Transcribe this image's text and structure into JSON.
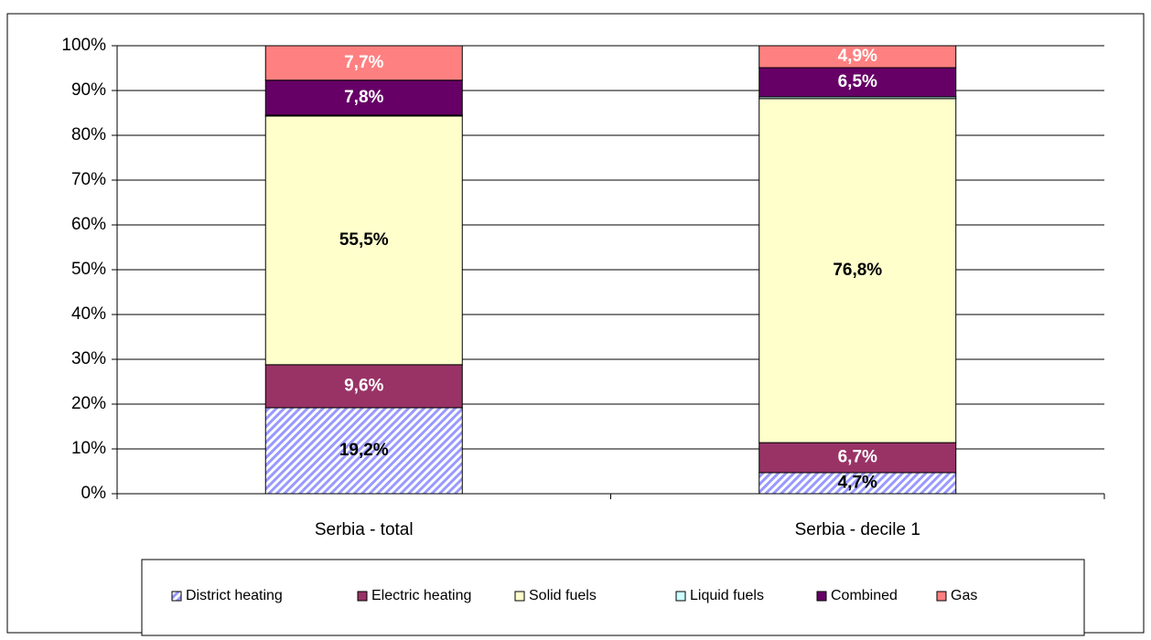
{
  "chart_data": {
    "type": "stacked_bar",
    "categories": [
      "Serbia - total",
      "Serbia - decile 1"
    ],
    "series": [
      {
        "name": "District heating",
        "color": "#9999ff",
        "pattern": "hatch",
        "label_color": "#000000",
        "values": [
          19.2,
          4.7
        ],
        "value_labels": [
          "19,2%",
          "4,7%"
        ]
      },
      {
        "name": "Electric heating",
        "color": "#993366",
        "label_color": "#ffffff",
        "values": [
          9.6,
          6.7
        ],
        "value_labels": [
          "9,6%",
          "6,7%"
        ]
      },
      {
        "name": "Solid fuels",
        "color": "#ffffcc",
        "label_color": "#000000",
        "values": [
          55.5,
          76.8
        ],
        "value_labels": [
          "55,5%",
          "76,8%"
        ]
      },
      {
        "name": "Liquid fuels",
        "color": "#ccffff",
        "label_color": "#000000",
        "values": [
          0.2,
          0.4
        ]
      },
      {
        "name": "Combined",
        "color": "#660066",
        "label_color": "#ffffff",
        "values": [
          7.8,
          6.5
        ],
        "value_labels": [
          "7,8%",
          "6,5%"
        ]
      },
      {
        "name": "Gas",
        "color": "#ff8080",
        "label_color": "#ffffff",
        "values": [
          7.7,
          4.9
        ],
        "value_labels": [
          "7,7%",
          "4,9%"
        ]
      }
    ],
    "ylim": [
      0,
      100
    ],
    "yticks": [
      {
        "value": 0,
        "label": "0%"
      },
      {
        "value": 10,
        "label": "10%"
      },
      {
        "value": 20,
        "label": "20%"
      },
      {
        "value": 30,
        "label": "30%"
      },
      {
        "value": 40,
        "label": "40%"
      },
      {
        "value": 50,
        "label": "50%"
      },
      {
        "value": 60,
        "label": "60%"
      },
      {
        "value": 70,
        "label": "70%"
      },
      {
        "value": 80,
        "label": "80%"
      },
      {
        "value": 90,
        "label": "90%"
      },
      {
        "value": 100,
        "label": "100%"
      }
    ],
    "grid": true,
    "legend": "bottom"
  }
}
